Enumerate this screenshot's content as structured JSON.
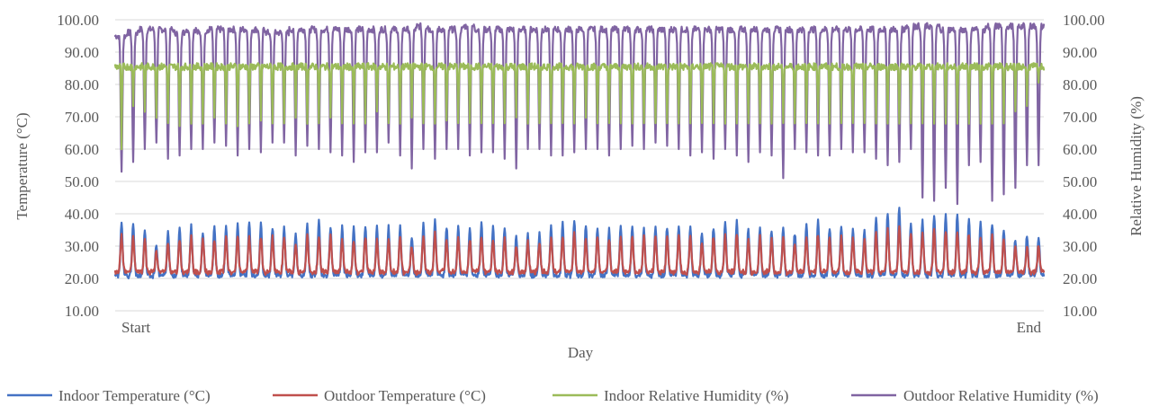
{
  "chart_data": {
    "type": "line",
    "xlabel": "Day",
    "x_tick_labels": [
      "Start",
      "End"
    ],
    "ylabel_left": "Temperature (°C)",
    "ylabel_right": "Relative Humidity (%)",
    "ylim": [
      10,
      100
    ],
    "y_ticks": [
      "10.00",
      "20.00",
      "30.00",
      "40.00",
      "50.00",
      "60.00",
      "70.00",
      "80.00",
      "90.00",
      "100.00"
    ],
    "grid": true,
    "legend_position": "bottom",
    "days": 80,
    "series": [
      {
        "name": "Indoor Temperature (°C)",
        "axis": "left",
        "color": "#4472c4",
        "daily_min": 21,
        "daily_max_per_day": [
          37,
          37,
          35,
          30,
          34,
          36,
          36,
          34,
          36,
          36,
          37,
          38,
          37,
          36,
          36,
          34,
          37,
          38,
          36,
          36,
          36,
          36,
          36,
          36,
          36,
          33,
          37,
          38,
          36,
          36,
          36,
          37,
          36,
          36,
          33,
          34,
          34,
          36,
          37,
          38,
          36,
          36,
          35,
          36,
          36,
          36,
          36,
          36,
          36,
          36,
          34,
          36,
          37,
          38,
          35,
          36,
          35,
          36,
          34,
          36,
          38,
          36,
          36,
          35,
          35,
          39,
          40,
          42,
          37,
          38,
          40,
          40,
          40,
          38,
          37,
          37,
          35,
          32,
          33,
          33
        ]
      },
      {
        "name": "Outdoor Temperature (°C)",
        "axis": "left",
        "color": "#c0504d",
        "daily_min": 22,
        "daily_max_per_day": [
          33,
          33,
          32,
          28,
          31,
          32,
          33,
          32,
          32,
          33,
          33,
          33,
          33,
          33,
          33,
          31,
          33,
          33,
          33,
          32,
          32,
          33,
          32,
          32,
          33,
          30,
          33,
          34,
          32,
          33,
          32,
          33,
          32,
          32,
          30,
          31,
          31,
          33,
          33,
          34,
          32,
          33,
          32,
          33,
          33,
          33,
          33,
          33,
          33,
          33,
          31,
          33,
          33,
          34,
          32,
          33,
          32,
          33,
          31,
          33,
          34,
          33,
          33,
          32,
          32,
          34,
          35,
          36,
          34,
          34,
          35,
          35,
          35,
          34,
          33,
          33,
          32,
          30,
          30,
          30
        ]
      },
      {
        "name": "Indoor Relative Humidity (%)",
        "axis": "right",
        "color": "#9bbb59",
        "daily_max": 87,
        "daily_min_per_day": [
          57,
          72,
          70,
          68,
          66,
          65,
          66,
          66,
          68,
          66,
          65,
          66,
          67,
          66,
          66,
          68,
          66,
          66,
          68,
          66,
          66,
          66,
          70,
          66,
          66,
          68,
          66,
          66,
          67,
          66,
          66,
          66,
          66,
          66,
          68,
          66,
          66,
          66,
          66,
          66,
          68,
          66,
          66,
          66,
          66,
          66,
          66,
          66,
          66,
          66,
          66,
          66,
          66,
          66,
          66,
          66,
          66,
          66,
          66,
          66,
          66,
          66,
          66,
          66,
          66,
          66,
          66,
          66,
          66,
          66,
          66,
          66,
          66,
          66,
          66,
          66,
          66,
          70,
          72,
          80
        ]
      },
      {
        "name": "Outdoor Relative Humidity (%)",
        "axis": "right",
        "color": "#8064a2",
        "daily_max_per_day": [
          96,
          97,
          98,
          98,
          98,
          97,
          98,
          97,
          98,
          98,
          98,
          98,
          98,
          97,
          97,
          98,
          98,
          98,
          98,
          98,
          98,
          98,
          98,
          98,
          98,
          98,
          99,
          98,
          98,
          98,
          99,
          98,
          98,
          98,
          98,
          98,
          98,
          98,
          98,
          98,
          98,
          98,
          98,
          98,
          98,
          98,
          98,
          98,
          98,
          98,
          98,
          98,
          98,
          98,
          98,
          98,
          98,
          98,
          98,
          98,
          98,
          98,
          98,
          98,
          98,
          98,
          98,
          98,
          99,
          99,
          99,
          98,
          98,
          98,
          98,
          99,
          99,
          99,
          99,
          99
        ],
        "daily_min_per_day": [
          53,
          56,
          60,
          62,
          57,
          58,
          60,
          60,
          62,
          61,
          58,
          60,
          59,
          62,
          62,
          58,
          61,
          60,
          59,
          58,
          56,
          59,
          59,
          62,
          58,
          54,
          60,
          57,
          60,
          60,
          58,
          59,
          59,
          57,
          54,
          60,
          60,
          58,
          58,
          59,
          60,
          60,
          58,
          60,
          61,
          60,
          62,
          61,
          60,
          58,
          59,
          57,
          60,
          58,
          56,
          59,
          58,
          51,
          60,
          59,
          58,
          58,
          60,
          59,
          59,
          57,
          55,
          56,
          60,
          45,
          44,
          48,
          43,
          55,
          56,
          44,
          46,
          48,
          55,
          55
        ]
      }
    ]
  }
}
